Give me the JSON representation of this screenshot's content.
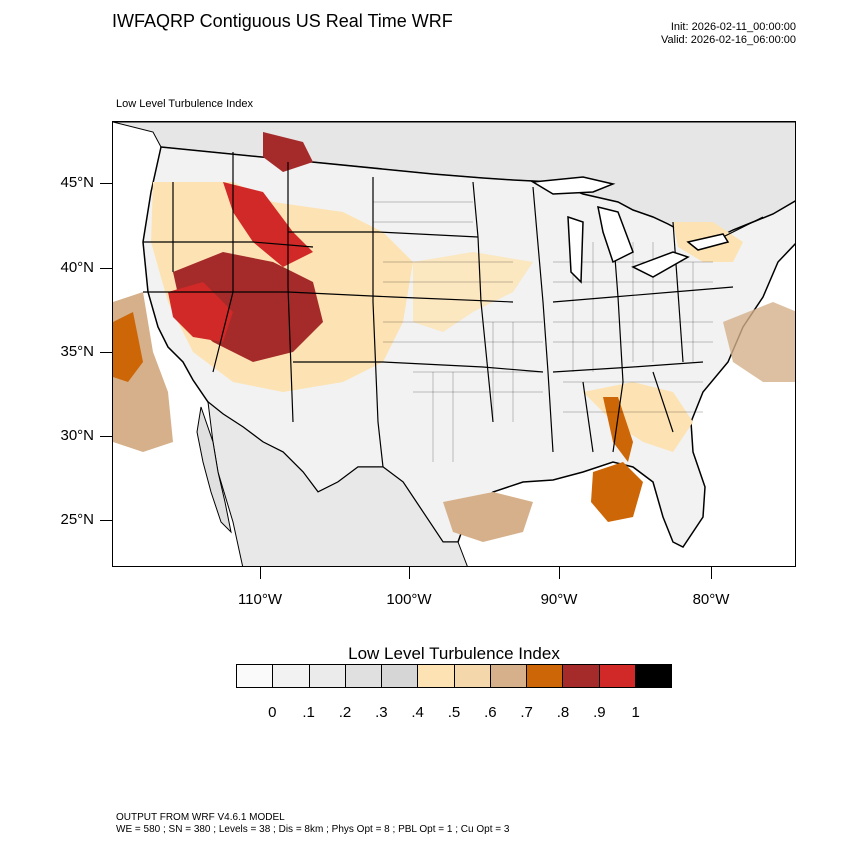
{
  "header": {
    "title": "IWFAQRP Contiguous US Real Time WRF",
    "init": "Init: 2026-02-11_00:00:00",
    "valid": "Valid: 2026-02-16_06:00:00"
  },
  "map": {
    "subtitle": "Low Level Turbulence Index",
    "lat_labels": [
      "45°N",
      "40°N",
      "35°N",
      "30°N",
      "25°N"
    ],
    "lon_labels": [
      "110°W",
      "100°W",
      "90°W",
      "80°W"
    ],
    "water_color": "#ffffff",
    "boundary_color": "#000000"
  },
  "legend": {
    "title": "Low Level Turbulence Index",
    "ticks": [
      "0",
      ".1",
      ".2",
      ".3",
      ".4",
      ".5",
      ".6",
      ".7",
      ".8",
      ".9",
      "1"
    ],
    "colors": [
      "#fafafa",
      "#f2f2f2",
      "#ebebeb",
      "#e0e0e0",
      "#d6d6d6",
      "#fde3b3",
      "#f4d7ab",
      "#d5b08a",
      "#cd6607",
      "#a52a2a",
      "#d12828",
      "#000000"
    ]
  },
  "footer": {
    "line1": "OUTPUT FROM WRF V4.6.1 MODEL",
    "line2": "WE = 580 ; SN = 380 ; Levels = 38 ; Dis = 8km ; Phys Opt = 8 ; PBL Opt = 1 ; Cu Opt = 3"
  }
}
